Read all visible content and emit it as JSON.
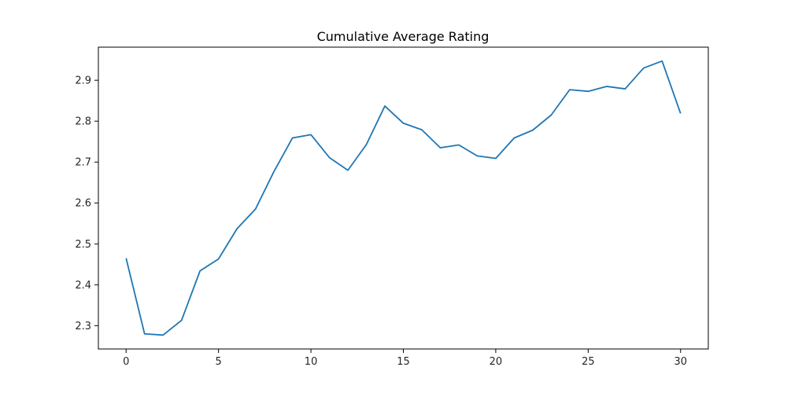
{
  "chart_data": {
    "type": "line",
    "title": "Cumulative Average Rating",
    "xlabel": "",
    "ylabel": "",
    "xlim": [
      -1.5,
      31.5
    ],
    "ylim": [
      2.243,
      2.981
    ],
    "xticks": [
      0,
      5,
      10,
      15,
      20,
      25,
      30
    ],
    "xtick_labels": [
      "0",
      "5",
      "10",
      "15",
      "20",
      "25",
      "30"
    ],
    "yticks": [
      2.3,
      2.4,
      2.5,
      2.6,
      2.7,
      2.8,
      2.9
    ],
    "ytick_labels": [
      "2.3",
      "2.4",
      "2.5",
      "2.6",
      "2.7",
      "2.8",
      "2.9"
    ],
    "grid": false,
    "legend": "none",
    "series": [
      {
        "color": "#1f77b4",
        "x": [
          0,
          1,
          2,
          3,
          4,
          5,
          6,
          7,
          8,
          9,
          10,
          11,
          12,
          13,
          14,
          15,
          16,
          17,
          18,
          19,
          20,
          21,
          22,
          23,
          24,
          25,
          26,
          27,
          28,
          29,
          30
        ],
        "y": [
          2.465,
          2.28,
          2.277,
          2.313,
          2.434,
          2.463,
          2.537,
          2.585,
          2.677,
          2.759,
          2.767,
          2.711,
          2.68,
          2.743,
          2.837,
          2.795,
          2.779,
          2.735,
          2.742,
          2.715,
          2.709,
          2.759,
          2.778,
          2.815,
          2.877,
          2.873,
          2.885,
          2.879,
          2.93,
          2.947,
          2.819
        ]
      }
    ]
  }
}
